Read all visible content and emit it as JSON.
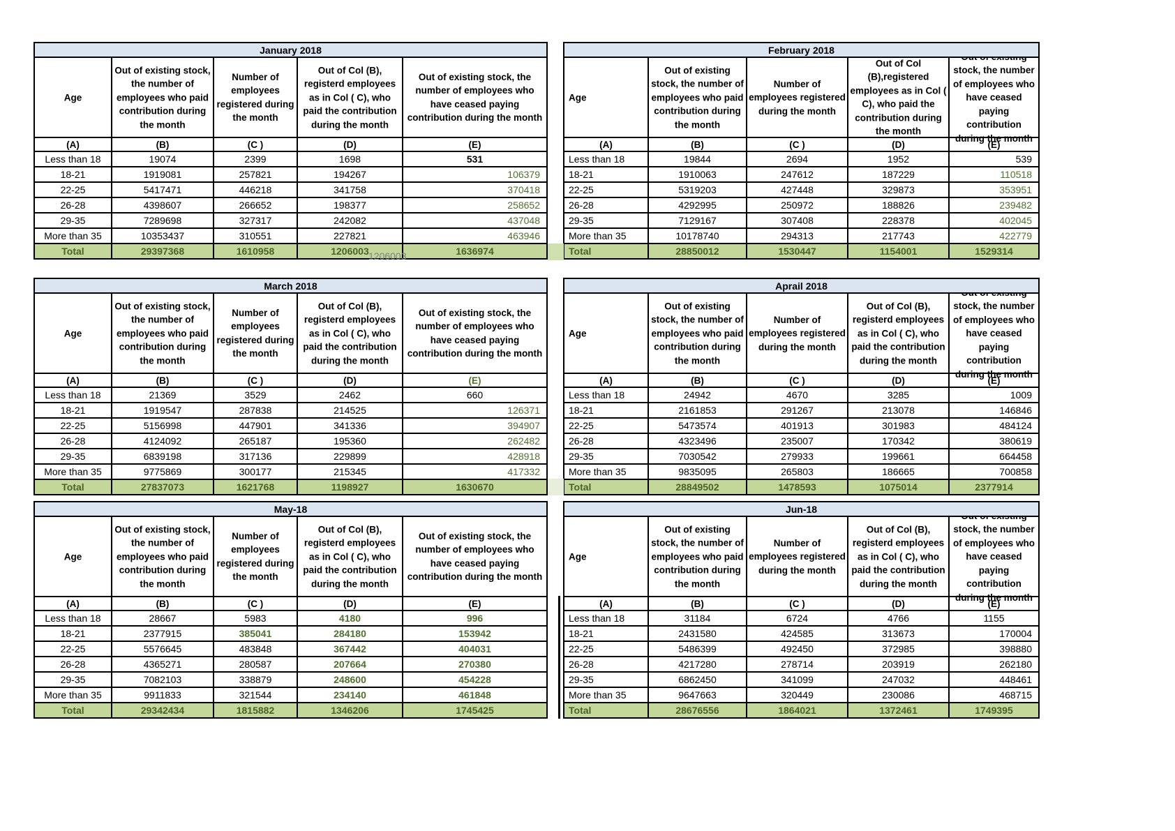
{
  "colors": {
    "title_bar_bg": "#dbe5f1",
    "total_row_bg": "#c4d79b",
    "green_value": "#50702f",
    "total_row_text": "#4a6228",
    "overlay_text": "#808080",
    "gutter_block_1": "#cfe0ae",
    "gutter_block_2": "#e7efda"
  },
  "overlay": {
    "text": "1206003"
  },
  "tables": [
    {
      "title": "January 2018",
      "side": "left",
      "headers": [
        "Age",
        "Out of existing stock, the number of employees who paid contribution during the month",
        "Number of employees registered during the month",
        "Out of Col (B), registerd employees as in Col ( C), who paid the contribution during the month",
        "Out of existing stock, the number of  employees  who have ceased paying contribution during the month"
      ],
      "letters": [
        "(A)",
        "(B)",
        "(C )",
        "(D)",
        "(E)"
      ],
      "letter_e_green": false,
      "rows": [
        {
          "age": "Less than 18",
          "values": [
            "19074",
            "2399",
            "1698",
            "531"
          ],
          "styles": [
            "",
            "",
            "",
            "bb"
          ]
        },
        {
          "age": "18-21",
          "values": [
            "1919081",
            "257821",
            "194267",
            "106379"
          ],
          "styles": [
            "",
            "",
            "",
            "g"
          ]
        },
        {
          "age": "22-25",
          "values": [
            "5417471",
            "446218",
            "341758",
            "370418"
          ],
          "styles": [
            "",
            "",
            "",
            "g"
          ]
        },
        {
          "age": "26-28",
          "values": [
            "4398607",
            "266652",
            "198377",
            "258652"
          ],
          "styles": [
            "",
            "",
            "",
            "g"
          ]
        },
        {
          "age": "29-35",
          "values": [
            "7289698",
            "327317",
            "242082",
            "437048"
          ],
          "styles": [
            "",
            "",
            "",
            "g"
          ]
        },
        {
          "age": "More than 35",
          "values": [
            "10353437",
            "310551",
            "227821",
            "463946"
          ],
          "styles": [
            "",
            "",
            "",
            "g"
          ]
        }
      ],
      "total": {
        "label": "Total",
        "values": [
          "29397368",
          "1610958",
          "1206003",
          "1636974"
        ]
      }
    },
    {
      "title": "February 2018",
      "side": "right",
      "headers": [
        "Age",
        "Out of existing stock, the number of employees who paid contribution during the month",
        "Number of employees registered during the month",
        "Out of Col (B),registered employees as in Col ( C), who paid the contribution during the month",
        "Out of existing stock, the number of  employees  who have ceased paying contribution during the month"
      ],
      "letters": [
        "(A)",
        "(B)",
        "(C )",
        "(D)",
        "(E)"
      ],
      "letter_e_green": false,
      "rows": [
        {
          "age": "Less than 18",
          "values": [
            "19844",
            "2694",
            "1952",
            "539"
          ],
          "styles": [
            "",
            "",
            "",
            "r"
          ]
        },
        {
          "age": "18-21",
          "values": [
            "1910063",
            "247612",
            "187229",
            "110518"
          ],
          "styles": [
            "",
            "",
            "",
            "g"
          ]
        },
        {
          "age": "22-25",
          "values": [
            "5319203",
            "427448",
            "329873",
            "353951"
          ],
          "styles": [
            "",
            "",
            "",
            "g"
          ]
        },
        {
          "age": "26-28",
          "values": [
            "4292995",
            "250972",
            "188826",
            "239482"
          ],
          "styles": [
            "",
            "",
            "",
            "g"
          ]
        },
        {
          "age": "29-35",
          "values": [
            "7129167",
            "307408",
            "228378",
            "402045"
          ],
          "styles": [
            "",
            "",
            "",
            "g"
          ]
        },
        {
          "age": "More than 35",
          "values": [
            "10178740",
            "294313",
            "217743",
            "422779"
          ],
          "styles": [
            "",
            "",
            "",
            "g"
          ]
        }
      ],
      "total": {
        "label": "Total",
        "values": [
          "28850012",
          "1530447",
          "1154001",
          "1529314"
        ]
      }
    },
    {
      "title": "March 2018",
      "side": "left",
      "headers": [
        "Age",
        "Out of existing stock, the number of employees who paid contribution during the month",
        "Number of employees registered during the month",
        "Out of Col (B), registerd employees as in Col ( C), who paid the contribution during the month",
        "Out of existing stock, the number of  employees  who have ceased paying contribution during the month"
      ],
      "letters": [
        "(A)",
        "(B)",
        "(C )",
        "(D)",
        "(E)"
      ],
      "letter_e_green": true,
      "rows": [
        {
          "age": "Less than 18",
          "values": [
            "21369",
            "3529",
            "2462",
            "660"
          ],
          "styles": [
            "",
            "",
            "",
            ""
          ]
        },
        {
          "age": "18-21",
          "values": [
            "1919547",
            "287838",
            "214525",
            "126371"
          ],
          "styles": [
            "",
            "",
            "",
            "g"
          ]
        },
        {
          "age": "22-25",
          "values": [
            "5156998",
            "447901",
            "341336",
            "394907"
          ],
          "styles": [
            "",
            "",
            "",
            "g"
          ]
        },
        {
          "age": "26-28",
          "values": [
            "4124092",
            "265187",
            "195360",
            "262482"
          ],
          "styles": [
            "",
            "",
            "",
            "g"
          ]
        },
        {
          "age": "29-35",
          "values": [
            "6839198",
            "317136",
            "229899",
            "428918"
          ],
          "styles": [
            "",
            "",
            "",
            "g"
          ]
        },
        {
          "age": "More than 35",
          "values": [
            "9775869",
            "300177",
            "215345",
            "417332"
          ],
          "styles": [
            "",
            "",
            "",
            "g"
          ]
        }
      ],
      "total": {
        "label": "Total",
        "values": [
          "27837073",
          "1621768",
          "1198927",
          "1630670"
        ]
      }
    },
    {
      "title": "Aprail 2018",
      "side": "right",
      "headers": [
        "Age",
        "Out of existing stock, the number of employees who paid contribution during the month",
        "Number of employees registered during the month",
        "Out of Col (B), registerd employees as in Col ( C), who paid the contribution during the month",
        "Out of existing stock, the number of  employees  who have ceased paying contribution during the month"
      ],
      "letters": [
        "(A)",
        "(B)",
        "(C )",
        "(D)",
        "(E)"
      ],
      "letter_e_green": false,
      "rows": [
        {
          "age": "Less than 18",
          "values": [
            "24942",
            "4670",
            "3285",
            "1009"
          ],
          "styles": [
            "",
            "",
            "",
            "r"
          ]
        },
        {
          "age": "18-21",
          "values": [
            "2161853",
            "291267",
            "213078",
            "146846"
          ],
          "styles": [
            "",
            "",
            "",
            "r"
          ]
        },
        {
          "age": "22-25",
          "values": [
            "5473574",
            "401913",
            "301983",
            "484124"
          ],
          "styles": [
            "",
            "",
            "",
            "r"
          ]
        },
        {
          "age": "26-28",
          "values": [
            "4323496",
            "235007",
            "170342",
            "380619"
          ],
          "styles": [
            "",
            "",
            "",
            "r"
          ]
        },
        {
          "age": "29-35",
          "values": [
            "7030542",
            "279933",
            "199661",
            "664458"
          ],
          "styles": [
            "",
            "",
            "",
            "r"
          ]
        },
        {
          "age": "More than 35",
          "values": [
            "9835095",
            "265803",
            "186665",
            "700858"
          ],
          "styles": [
            "",
            "",
            "",
            "r"
          ]
        }
      ],
      "total": {
        "label": "Total",
        "values": [
          "28849502",
          "1478593",
          "1075014",
          "2377914"
        ]
      }
    },
    {
      "title": "May-18",
      "side": "left",
      "headers": [
        "Age",
        "Out of existing stock, the number of employees who paid contribution during the month",
        "Number of employees registered during the month",
        "Out of Col (B), registerd employees as in Col ( C), who paid the contribution during the month",
        "Out of existing stock, the number of  employees  who have ceased paying contribution during the month"
      ],
      "letters": [
        "(A)",
        "(B)",
        "(C )",
        "(D)",
        "(E)"
      ],
      "letter_e_green": false,
      "rows": [
        {
          "age": "Less than 18",
          "values": [
            "28667",
            "5983",
            "4180",
            "996"
          ],
          "styles": [
            "",
            "",
            "gb",
            "gb"
          ]
        },
        {
          "age": "18-21",
          "values": [
            "2377915",
            "385041",
            "284180",
            "153942"
          ],
          "styles": [
            "",
            "gb",
            "gb",
            "gb"
          ]
        },
        {
          "age": "22-25",
          "values": [
            "5576645",
            "483848",
            "367442",
            "404031"
          ],
          "styles": [
            "",
            "",
            "gb",
            "gb"
          ]
        },
        {
          "age": "26-28",
          "values": [
            "4365271",
            "280587",
            "207664",
            "270380"
          ],
          "styles": [
            "",
            "",
            "gb",
            "gb"
          ]
        },
        {
          "age": "29-35",
          "values": [
            "7082103",
            "338879",
            "248600",
            "454228"
          ],
          "styles": [
            "",
            "",
            "gb",
            "gb"
          ]
        },
        {
          "age": "More than 35",
          "values": [
            "9911833",
            "321544",
            "234140",
            "461848"
          ],
          "styles": [
            "",
            "",
            "gb",
            "gb"
          ]
        }
      ],
      "total": {
        "label": "Total",
        "values": [
          "29342434",
          "1815882",
          "1346206",
          "1745425"
        ]
      }
    },
    {
      "title": "Jun-18",
      "side": "right",
      "headers": [
        "Age",
        "Out of existing stock, the number of employees who paid contribution during the month",
        "Number of employees registered during the month",
        "Out of Col (B), registerd employees as in Col ( C), who paid the contribution during the month",
        "Out of existing stock, the number of  employees  who have ceased paying contribution during the month"
      ],
      "letters": [
        "(A)",
        "(B)",
        "(C )",
        "(D)",
        "(E)"
      ],
      "letter_e_green": false,
      "rows": [
        {
          "age": "Less than 18",
          "values": [
            "31184",
            "6724",
            "4766",
            "1155"
          ],
          "styles": [
            "",
            "",
            "",
            ""
          ]
        },
        {
          "age": "18-21",
          "values": [
            "2431580",
            "424585",
            "313673",
            "170004"
          ],
          "styles": [
            "",
            "",
            "",
            "r"
          ]
        },
        {
          "age": "22-25",
          "values": [
            "5486399",
            "492450",
            "372985",
            "398880"
          ],
          "styles": [
            "",
            "",
            "",
            "r"
          ]
        },
        {
          "age": "26-28",
          "values": [
            "4217280",
            "278714",
            "203919",
            "262180"
          ],
          "styles": [
            "",
            "",
            "",
            "r"
          ]
        },
        {
          "age": "29-35",
          "values": [
            "6862450",
            "341099",
            "247032",
            "448461"
          ],
          "styles": [
            "",
            "",
            "",
            "r"
          ]
        },
        {
          "age": "More than 35",
          "values": [
            "9647663",
            "320449",
            "230086",
            "468715"
          ],
          "styles": [
            "",
            "",
            "",
            "r"
          ]
        }
      ],
      "total": {
        "label": "Total",
        "values": [
          "28676556",
          "1864021",
          "1372461",
          "1749395"
        ]
      }
    }
  ]
}
